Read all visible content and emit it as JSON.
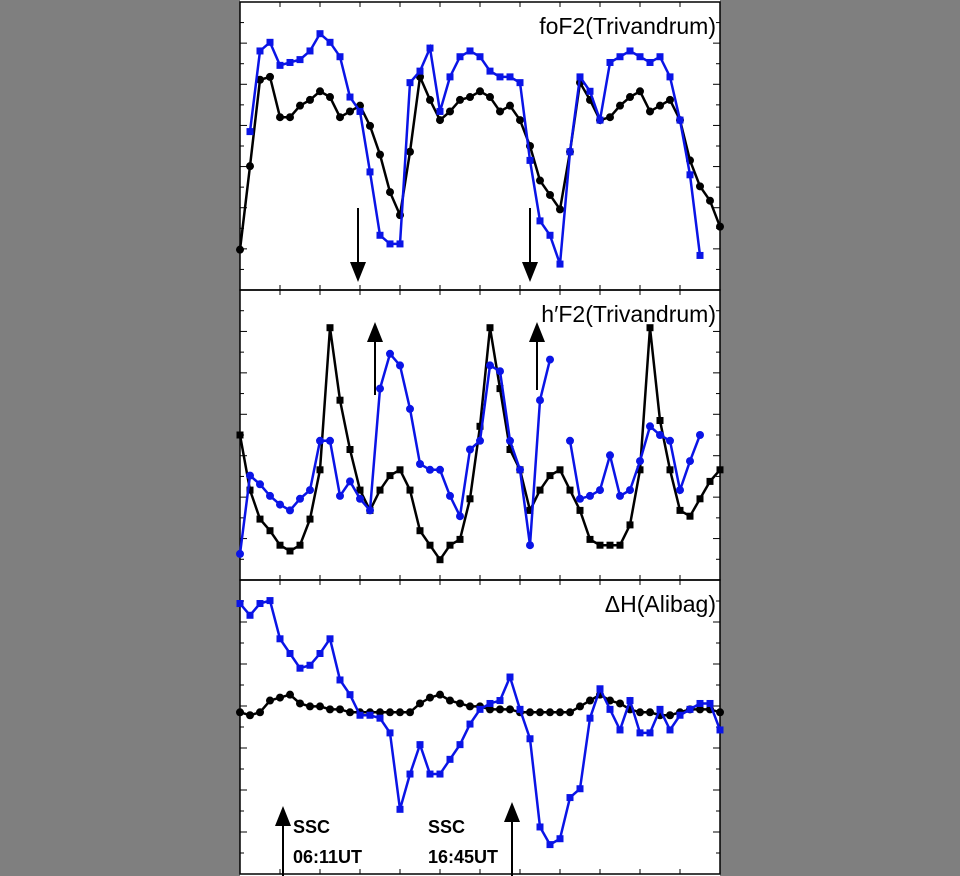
{
  "chart_data": [
    {
      "type": "line",
      "title": "foF2(Trivandrum)",
      "xlim": [
        0,
        48
      ],
      "ylim": [
        0,
        100
      ],
      "x": [
        0,
        1,
        2,
        3,
        4,
        5,
        6,
        7,
        8,
        9,
        10,
        11,
        12,
        13,
        14,
        15,
        16,
        17,
        18,
        19,
        20,
        21,
        22,
        23,
        24,
        25,
        26,
        27,
        28,
        29,
        30,
        31,
        32,
        33,
        34,
        35,
        36,
        37,
        38,
        39,
        40,
        41,
        42,
        43,
        44,
        45,
        46,
        47,
        48
      ],
      "series": [
        {
          "color": "#000000",
          "marker": "circle",
          "values": [
            14,
            43,
            73,
            74,
            60,
            60,
            64,
            66,
            69,
            67,
            60,
            62,
            64,
            57,
            47,
            34,
            26,
            48,
            74,
            66,
            59,
            62,
            66,
            67,
            69,
            67,
            62,
            64,
            59,
            50,
            38,
            33,
            28,
            48,
            72,
            66,
            59,
            60,
            64,
            67,
            69,
            62,
            64,
            66,
            59,
            45,
            36,
            31,
            22
          ]
        },
        {
          "color": "#0a14e6",
          "marker": "square",
          "values": [
            null,
            55,
            83,
            86,
            78,
            79,
            80,
            83,
            89,
            86,
            81,
            67,
            62,
            41,
            19,
            16,
            16,
            72,
            76,
            84,
            62,
            74,
            81,
            83,
            81,
            76,
            74,
            74,
            72,
            45,
            24,
            19,
            9,
            48,
            74,
            69,
            59,
            79,
            81,
            83,
            81,
            79,
            81,
            74,
            59,
            40,
            12,
            null,
            null
          ]
        }
      ]
    },
    {
      "type": "line",
      "title": "h′F2(Trivandrum)",
      "xlim": [
        0,
        48
      ],
      "ylim": [
        0,
        100
      ],
      "x": [
        0,
        1,
        2,
        3,
        4,
        5,
        6,
        7,
        8,
        9,
        10,
        11,
        12,
        13,
        14,
        15,
        16,
        17,
        18,
        19,
        20,
        21,
        22,
        23,
        24,
        25,
        26,
        27,
        28,
        29,
        30,
        31,
        32,
        33,
        34,
        35,
        36,
        37,
        38,
        39,
        40,
        41,
        42,
        43,
        44,
        45,
        46,
        47,
        48
      ],
      "series": [
        {
          "color": "#000000",
          "marker": "square",
          "values": [
            50,
            31,
            21,
            17,
            12,
            10,
            12,
            21,
            38,
            87,
            62,
            45,
            31,
            24,
            31,
            36,
            38,
            31,
            17,
            12,
            7,
            12,
            14,
            28,
            53,
            87,
            66,
            45,
            38,
            24,
            31,
            36,
            38,
            31,
            24,
            14,
            12,
            12,
            12,
            19,
            38,
            87,
            55,
            38,
            24,
            22,
            28,
            34,
            38
          ]
        },
        {
          "color": "#0a14e6",
          "marker": "circle",
          "values": [
            9,
            36,
            33,
            29,
            26,
            24,
            28,
            31,
            48,
            48,
            29,
            34,
            28,
            24,
            66,
            78,
            74,
            59,
            40,
            38,
            38,
            29,
            22,
            45,
            48,
            74,
            72,
            48,
            38,
            12,
            62,
            76,
            null,
            48,
            28,
            29,
            31,
            43,
            29,
            31,
            41,
            53,
            50,
            48,
            31,
            41,
            50,
            null,
            null
          ]
        }
      ]
    },
    {
      "type": "line",
      "title": "ΔH(Alibag)",
      "xlim": [
        0,
        48
      ],
      "ylim": [
        0,
        100
      ],
      "x": [
        0,
        1,
        2,
        3,
        4,
        5,
        6,
        7,
        8,
        9,
        10,
        11,
        12,
        13,
        14,
        15,
        16,
        17,
        18,
        19,
        20,
        21,
        22,
        23,
        24,
        25,
        26,
        27,
        28,
        29,
        30,
        31,
        32,
        33,
        34,
        35,
        36,
        37,
        38,
        39,
        40,
        41,
        42,
        43,
        44,
        45,
        46,
        47,
        48
      ],
      "series": [
        {
          "color": "#000000",
          "marker": "circle",
          "values": [
            55,
            54,
            55,
            59,
            60,
            61,
            58,
            57,
            57,
            56,
            56,
            55,
            55,
            55,
            55,
            55,
            55,
            55,
            58,
            60,
            61,
            59,
            58,
            57,
            57,
            56,
            56,
            56,
            55,
            55,
            55,
            55,
            55,
            55,
            57,
            59,
            61,
            59,
            58,
            56,
            55,
            55,
            54,
            54,
            55,
            56,
            56,
            56,
            55
          ]
        },
        {
          "color": "#0a14e6",
          "marker": "square",
          "values": [
            92,
            88,
            92,
            93,
            80,
            75,
            70,
            71,
            75,
            80,
            66,
            61,
            54,
            54,
            53,
            48,
            22,
            34,
            44,
            34,
            34,
            39,
            44,
            51,
            56,
            58,
            59,
            67,
            56,
            46,
            16,
            10,
            12,
            26,
            29,
            53,
            63,
            56,
            49,
            59,
            48,
            48,
            56,
            49,
            54,
            56,
            58,
            58,
            49
          ]
        }
      ],
      "annotations": [
        [
          "SSC",
          "06:11UT"
        ],
        [
          "SSC",
          "16:45UT"
        ]
      ]
    }
  ]
}
